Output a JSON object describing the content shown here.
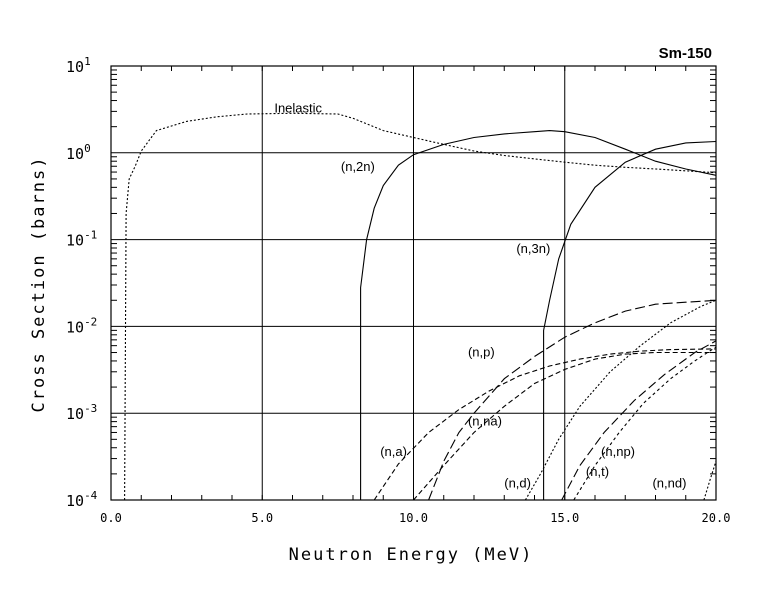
{
  "chart_data": {
    "type": "line",
    "title": "Sm-150",
    "xlabel": "Neutron Energy (MeV)",
    "ylabel": "Cross Section (barns)",
    "x_scale": "linear",
    "y_scale": "log",
    "xlim": [
      0,
      20
    ],
    "ylim_exp": [
      -4,
      1
    ],
    "x_ticks": [
      {
        "value": 0,
        "label": "0.0"
      },
      {
        "value": 5,
        "label": "5.0"
      },
      {
        "value": 10,
        "label": "10.0"
      },
      {
        "value": 15,
        "label": "15.0"
      },
      {
        "value": 20,
        "label": "20.0"
      }
    ],
    "y_ticks": [
      {
        "exp": 1,
        "base": "10",
        "sup": "1"
      },
      {
        "exp": 0,
        "base": "10",
        "sup": "0"
      },
      {
        "exp": -1,
        "base": "10",
        "sup": "-1"
      },
      {
        "exp": -2,
        "base": "10",
        "sup": "-2"
      },
      {
        "exp": -3,
        "base": "10",
        "sup": "-3"
      },
      {
        "exp": -4,
        "base": "10",
        "sup": "-4"
      }
    ],
    "grid": true,
    "series": [
      {
        "name": "inelastic",
        "label": "Inelastic",
        "dash": "2,2",
        "label_at": [
          5.4,
          2.9
        ],
        "points": [
          [
            0.45,
            0.0001
          ],
          [
            0.5,
            0.2
          ],
          [
            0.6,
            0.5
          ],
          [
            0.8,
            0.7
          ],
          [
            1.0,
            1.05
          ],
          [
            1.5,
            1.8
          ],
          [
            2.5,
            2.3
          ],
          [
            3.5,
            2.6
          ],
          [
            4.5,
            2.8
          ],
          [
            6,
            2.85
          ],
          [
            7.5,
            2.8
          ],
          [
            8.0,
            2.5
          ],
          [
            9,
            1.8
          ],
          [
            10,
            1.5
          ],
          [
            11,
            1.25
          ],
          [
            12,
            1.05
          ],
          [
            13,
            0.93
          ],
          [
            14,
            0.85
          ],
          [
            15,
            0.78
          ],
          [
            16,
            0.72
          ],
          [
            17,
            0.68
          ],
          [
            18,
            0.65
          ],
          [
            19,
            0.62
          ],
          [
            20,
            0.59
          ]
        ]
      },
      {
        "name": "n2n",
        "label": "(n,2n)",
        "dash": "",
        "label_at": [
          7.6,
          0.62
        ],
        "points": [
          [
            8.25,
            0.0001
          ],
          [
            8.25,
            0.028
          ],
          [
            8.45,
            0.1
          ],
          [
            8.7,
            0.23
          ],
          [
            9.0,
            0.42
          ],
          [
            9.5,
            0.72
          ],
          [
            10,
            0.95
          ],
          [
            11,
            1.25
          ],
          [
            12,
            1.5
          ],
          [
            13,
            1.65
          ],
          [
            14,
            1.75
          ],
          [
            14.5,
            1.8
          ],
          [
            15,
            1.75
          ],
          [
            16,
            1.5
          ],
          [
            17,
            1.1
          ],
          [
            18,
            0.8
          ],
          [
            19,
            0.65
          ],
          [
            20,
            0.55
          ]
        ]
      },
      {
        "name": "n3n",
        "label": "(n,3n)",
        "dash": "",
        "label_at": [
          13.4,
          0.07
        ],
        "points": [
          [
            14.3,
            0.0001
          ],
          [
            14.3,
            0.009
          ],
          [
            14.5,
            0.02
          ],
          [
            14.8,
            0.06
          ],
          [
            15.2,
            0.15
          ],
          [
            16,
            0.4
          ],
          [
            17,
            0.78
          ],
          [
            18,
            1.1
          ],
          [
            19,
            1.3
          ],
          [
            20,
            1.35
          ]
        ]
      },
      {
        "name": "np",
        "label": "(n,p)",
        "dash": "10,4",
        "label_at": [
          11.8,
          0.0045
        ],
        "points": [
          [
            10.5,
            0.0001
          ],
          [
            11,
            0.00028
          ],
          [
            11.5,
            0.0006
          ],
          [
            12,
            0.001
          ],
          [
            13,
            0.0025
          ],
          [
            14,
            0.0045
          ],
          [
            15,
            0.0075
          ],
          [
            16,
            0.011
          ],
          [
            17,
            0.015
          ],
          [
            18,
            0.018
          ],
          [
            19,
            0.019
          ],
          [
            20,
            0.02
          ]
        ]
      },
      {
        "name": "na",
        "label": "(n,na)",
        "dash": "5,3",
        "label_at": [
          11.8,
          0.00072
        ],
        "points": [
          [
            10,
            0.0001
          ],
          [
            11,
            0.00025
          ],
          [
            12,
            0.0006
          ],
          [
            13,
            0.0012
          ],
          [
            14,
            0.0022
          ],
          [
            15,
            0.0032
          ],
          [
            16,
            0.0042
          ],
          [
            17,
            0.0048
          ],
          [
            18,
            0.005
          ],
          [
            19,
            0.005
          ],
          [
            20,
            0.005
          ]
        ]
      },
      {
        "name": "na_alpha",
        "label": "(n,a)",
        "dash": "5,3",
        "label_at": [
          8.9,
          0.00032
        ],
        "points": [
          [
            8.7,
            0.0001
          ],
          [
            9.5,
            0.00026
          ],
          [
            10.5,
            0.0006
          ],
          [
            11.5,
            0.0011
          ],
          [
            12.5,
            0.0018
          ],
          [
            13.5,
            0.0027
          ],
          [
            14.5,
            0.0035
          ],
          [
            15.5,
            0.0042
          ],
          [
            16.5,
            0.0048
          ],
          [
            17.5,
            0.0052
          ],
          [
            18.5,
            0.0054
          ],
          [
            20,
            0.0055
          ]
        ]
      },
      {
        "name": "nd",
        "label": "(n,d)",
        "dash": "2,2",
        "label_at": [
          13.0,
          0.00014
        ],
        "points": [
          [
            13.7,
            0.0001
          ],
          [
            14.2,
            0.0002
          ],
          [
            14.8,
            0.0005
          ],
          [
            15.5,
            0.0012
          ],
          [
            16.5,
            0.003
          ],
          [
            17.5,
            0.006
          ],
          [
            18.5,
            0.011
          ],
          [
            19.5,
            0.017
          ],
          [
            20,
            0.02
          ]
        ]
      },
      {
        "name": "nt",
        "label": "(n,t)",
        "dash": "9,4",
        "label_at": [
          15.7,
          0.00019
        ],
        "points": [
          [
            14.9,
            0.0001
          ],
          [
            15.5,
            0.00025
          ],
          [
            16.3,
            0.0006
          ],
          [
            17.3,
            0.0014
          ],
          [
            18.3,
            0.0028
          ],
          [
            19.3,
            0.005
          ],
          [
            20,
            0.0068
          ]
        ]
      },
      {
        "name": "nnp",
        "label": "(n,np)",
        "dash": "3,3",
        "label_at": [
          16.2,
          0.00032
        ],
        "points": [
          [
            15.3,
            0.0001
          ],
          [
            16,
            0.00025
          ],
          [
            16.8,
            0.0006
          ],
          [
            17.6,
            0.0013
          ],
          [
            18.5,
            0.0025
          ],
          [
            19.3,
            0.004
          ],
          [
            20,
            0.0058
          ]
        ]
      },
      {
        "name": "nnd",
        "label": "(n,nd)",
        "dash": "2,2",
        "label_at": [
          17.9,
          0.00014
        ],
        "points": [
          [
            19.6,
            0.0001
          ],
          [
            19.8,
            0.00017
          ],
          [
            20,
            0.00028
          ]
        ]
      }
    ]
  }
}
